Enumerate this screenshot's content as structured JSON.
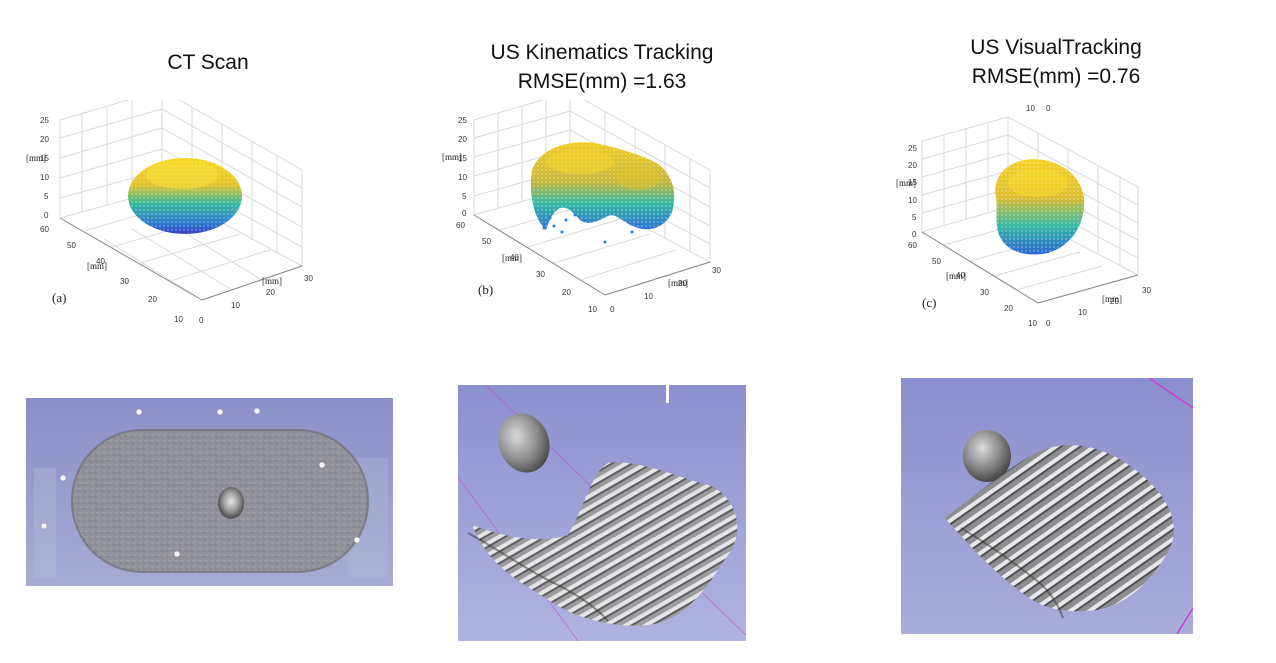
{
  "panels": [
    {
      "title_lines": [
        "CT Scan"
      ],
      "panel_label": "(a)",
      "axis_label": "[mm]",
      "z_ticks": [
        "25",
        "20",
        "15",
        "10",
        "5",
        "0"
      ],
      "y_ticks": [
        "60",
        "50",
        "40",
        "30",
        "20",
        "10"
      ],
      "x_ticks": [
        "0",
        "10",
        "20",
        "30"
      ]
    },
    {
      "title_lines": [
        "US Kinematics Tracking",
        "RMSE(mm) =1.63"
      ],
      "panel_label": "(b)",
      "axis_label": "[mm]",
      "z_ticks": [
        "25",
        "20",
        "15",
        "10",
        "5",
        "0"
      ],
      "y_ticks": [
        "60",
        "50",
        "40",
        "30",
        "20",
        "10"
      ],
      "x_ticks": [
        "0",
        "10",
        "20",
        "30"
      ]
    },
    {
      "title_lines": [
        "US VisualTracking",
        "RMSE(mm) =0.76"
      ],
      "panel_label": "(c)",
      "axis_label": "[mm]",
      "top_ticks": [
        "10",
        "0"
      ],
      "z_ticks": [
        "25",
        "20",
        "15",
        "10",
        "5",
        "0"
      ],
      "y_ticks": [
        "60",
        "50",
        "40",
        "30",
        "20",
        "10"
      ],
      "x_ticks": [
        "0",
        "10",
        "20",
        "30"
      ]
    }
  ],
  "colors": {
    "surface_top": "#f2c518",
    "surface_mid": "#2fb5a0",
    "surface_low": "#2b3fc8",
    "render_bg": "#8f95cf",
    "magenta_line": "#d23ad8"
  }
}
